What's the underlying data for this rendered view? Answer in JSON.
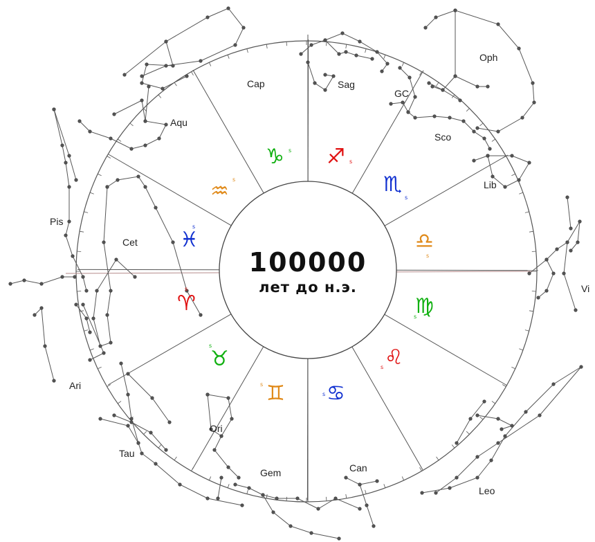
{
  "center": {
    "year": "100000",
    "era": "лет до н.э."
  },
  "colors": {
    "red": "#e01010",
    "green": "#10b010",
    "blue": "#1030d0",
    "orange": "#e08a1a",
    "lines": "#555555"
  },
  "constellations": [
    {
      "id": "cap",
      "label": "Cap"
    },
    {
      "id": "sag",
      "label": "Sag"
    },
    {
      "id": "gc",
      "label": "GC"
    },
    {
      "id": "oph",
      "label": "Oph"
    },
    {
      "id": "sco",
      "label": "Sco"
    },
    {
      "id": "lib",
      "label": "Lib"
    },
    {
      "id": "vir",
      "label": "Vi"
    },
    {
      "id": "aqu",
      "label": "Aqu"
    },
    {
      "id": "pis",
      "label": "Pis"
    },
    {
      "id": "cet",
      "label": "Cet"
    },
    {
      "id": "ari",
      "label": "Ari"
    },
    {
      "id": "tau",
      "label": "Tau"
    },
    {
      "id": "ori",
      "label": "Ori"
    },
    {
      "id": "gem",
      "label": "Gem"
    },
    {
      "id": "can",
      "label": "Can"
    },
    {
      "id": "leo",
      "label": "Leo"
    }
  ],
  "signs": [
    {
      "id": "capricorn",
      "glyph": "♑",
      "color": "#10b010",
      "mark": "s"
    },
    {
      "id": "sagittarius",
      "glyph": "♐",
      "color": "#e01010",
      "mark": "s"
    },
    {
      "id": "scorpio",
      "glyph": "♏",
      "color": "#1030d0",
      "mark": "s"
    },
    {
      "id": "libra",
      "glyph": "♎",
      "color": "#e08a1a",
      "mark": "s"
    },
    {
      "id": "virgo",
      "glyph": "♍",
      "color": "#10b010",
      "mark": "s"
    },
    {
      "id": "leo",
      "glyph": "♌",
      "color": "#e01010",
      "mark": "s"
    },
    {
      "id": "cancer",
      "glyph": "♋",
      "color": "#1030d0",
      "mark": "s"
    },
    {
      "id": "gemini",
      "glyph": "♊",
      "color": "#e08a1a",
      "mark": "s"
    },
    {
      "id": "taurus",
      "glyph": "♉",
      "color": "#10b010",
      "mark": "s"
    },
    {
      "id": "aries",
      "glyph": "♈",
      "color": "#e01010",
      "mark": "s"
    },
    {
      "id": "pisces",
      "glyph": "♓",
      "color": "#1030d0",
      "mark": "s"
    },
    {
      "id": "aquarius",
      "glyph": "♒",
      "color": "#e08a1a",
      "mark": "s"
    }
  ]
}
